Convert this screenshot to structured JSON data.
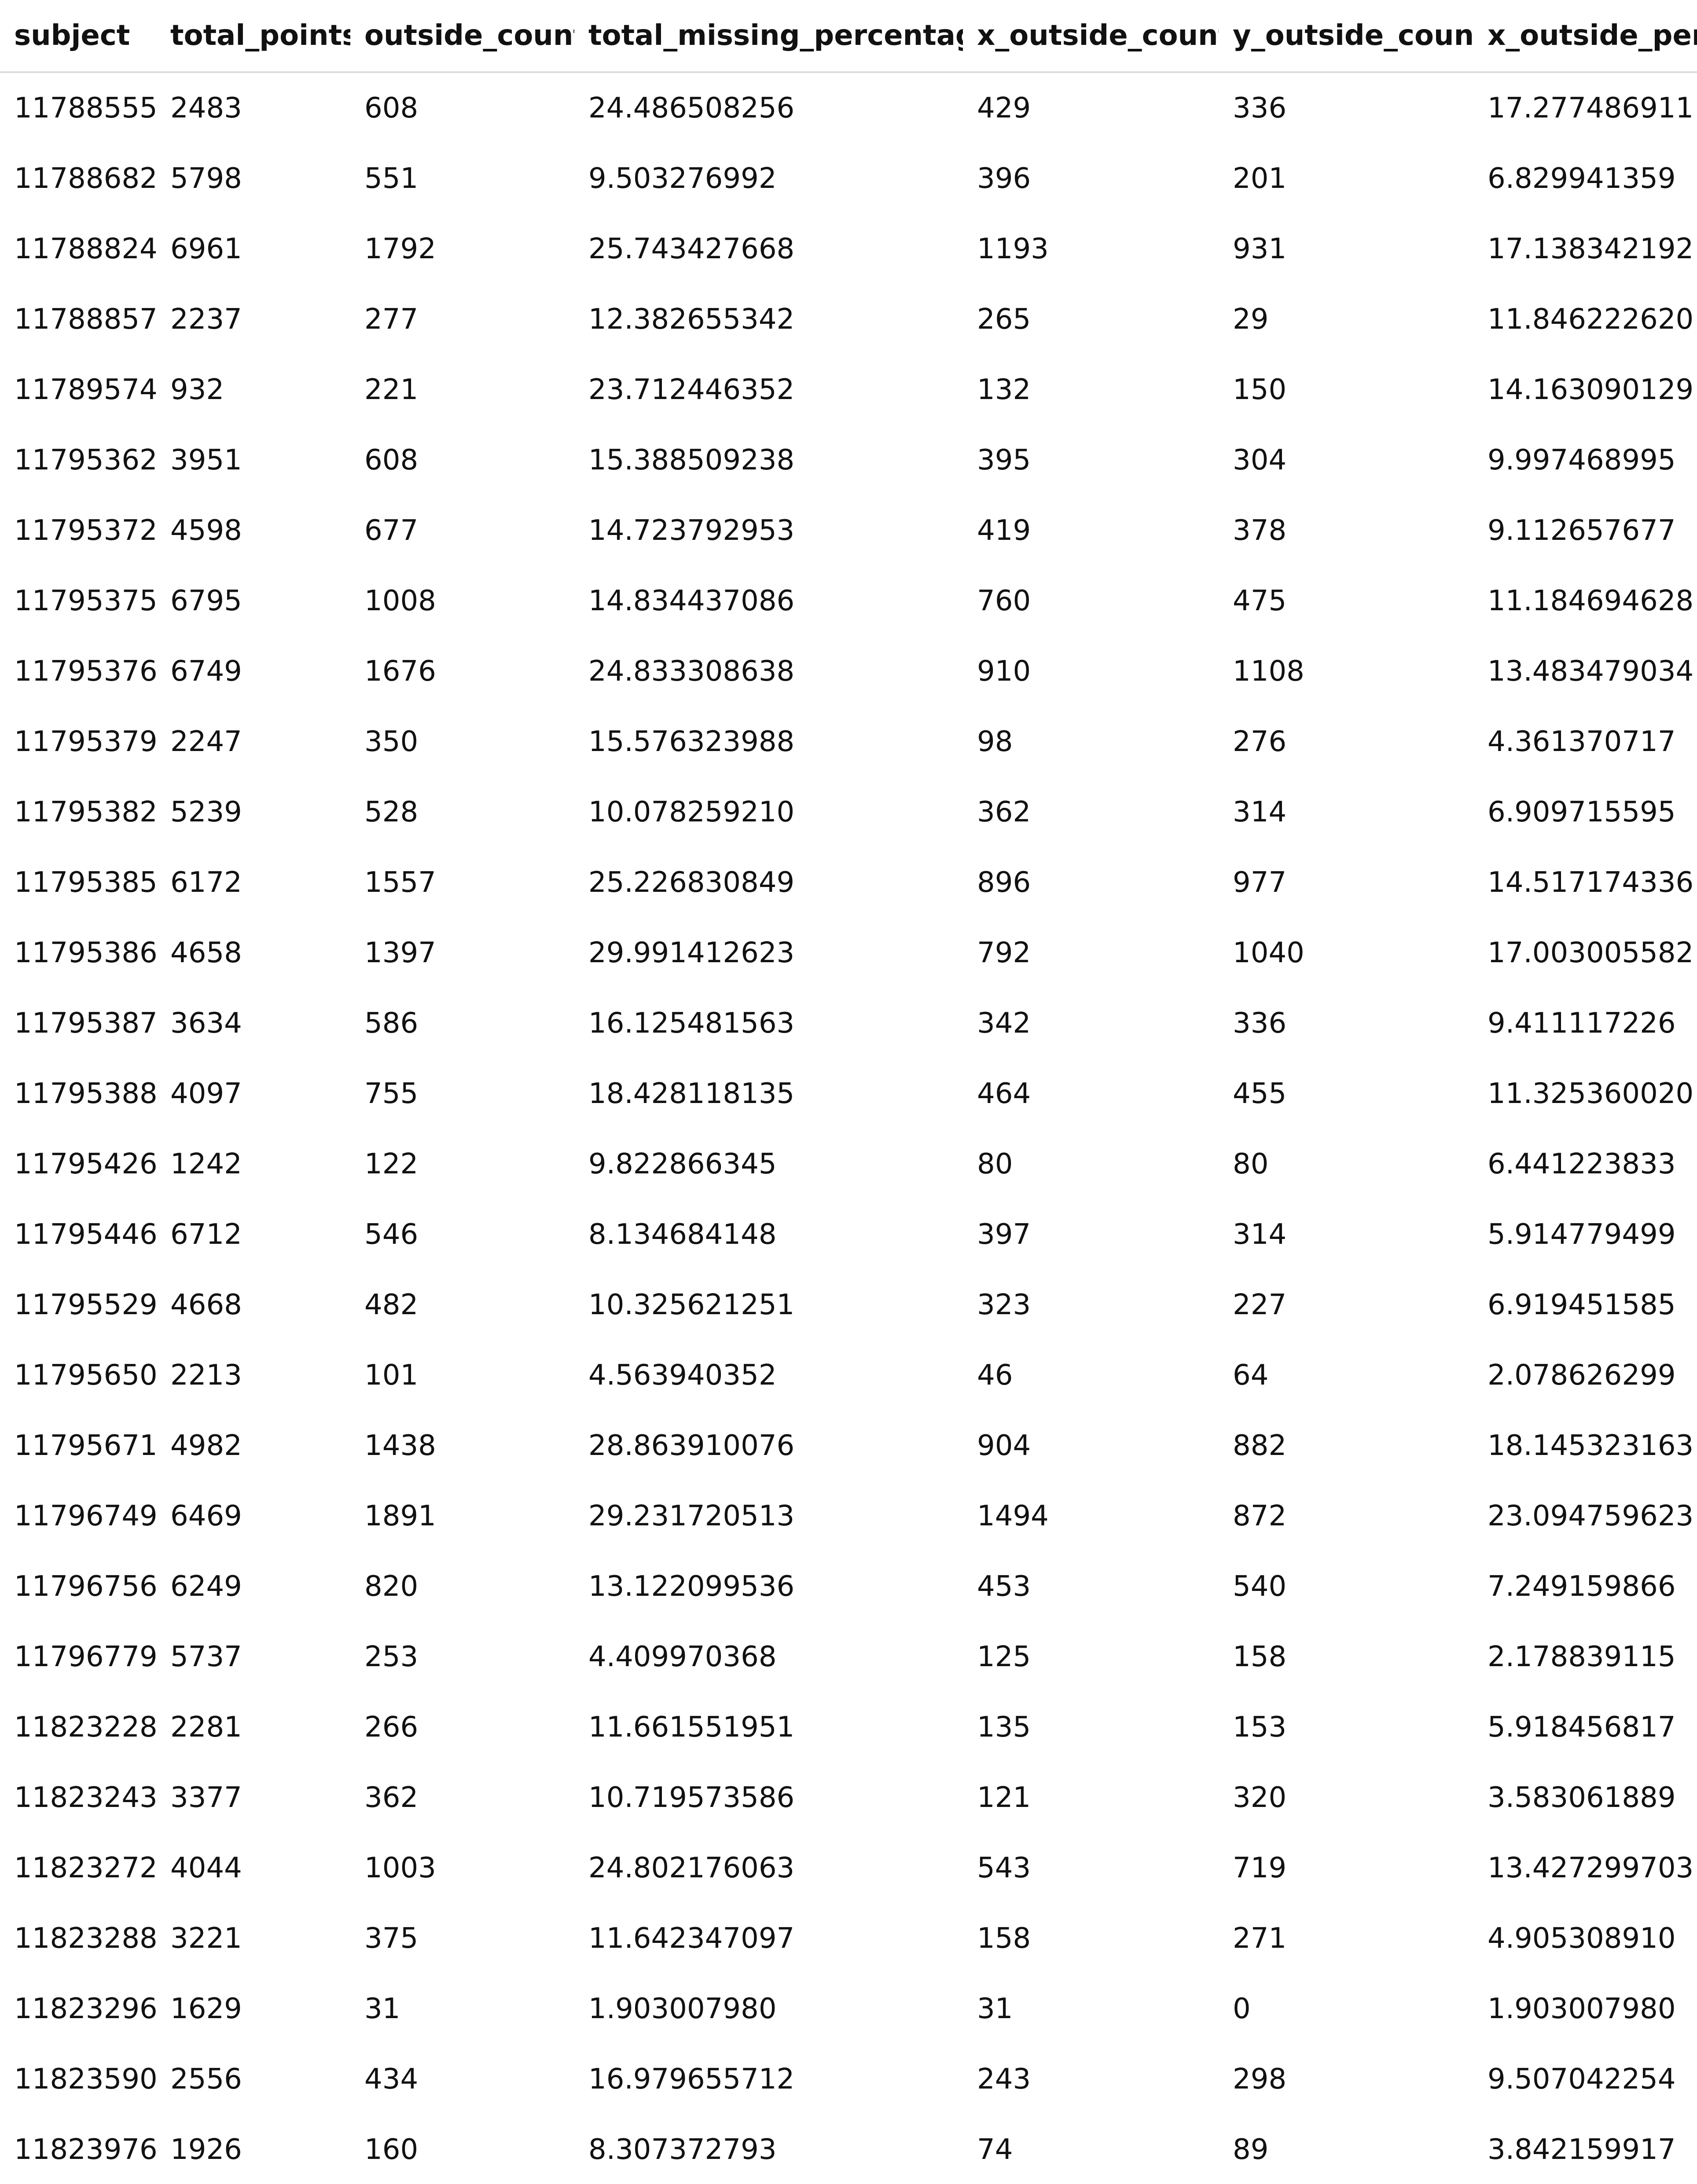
{
  "table": {
    "columns": [
      "subject",
      "total_points",
      "outside_count",
      "total_missing_percentage",
      "x_outside_count",
      "y_outside_count",
      "x_outside_perc"
    ],
    "rows": [
      [
        "11788555",
        "2483",
        "608",
        "24.486508256",
        "429",
        "336",
        "17.277486911"
      ],
      [
        "11788682",
        "5798",
        "551",
        "9.503276992",
        "396",
        "201",
        "6.829941359"
      ],
      [
        "11788824",
        "6961",
        "1792",
        "25.743427668",
        "1193",
        "931",
        "17.138342192"
      ],
      [
        "11788857",
        "2237",
        "277",
        "12.382655342",
        "265",
        "29",
        "11.846222620"
      ],
      [
        "11789574",
        "932",
        "221",
        "23.712446352",
        "132",
        "150",
        "14.163090129"
      ],
      [
        "11795362",
        "3951",
        "608",
        "15.388509238",
        "395",
        "304",
        "9.997468995"
      ],
      [
        "11795372",
        "4598",
        "677",
        "14.723792953",
        "419",
        "378",
        "9.112657677"
      ],
      [
        "11795375",
        "6795",
        "1008",
        "14.834437086",
        "760",
        "475",
        "11.184694628"
      ],
      [
        "11795376",
        "6749",
        "1676",
        "24.833308638",
        "910",
        "1108",
        "13.483479034"
      ],
      [
        "11795379",
        "2247",
        "350",
        "15.576323988",
        "98",
        "276",
        "4.361370717"
      ],
      [
        "11795382",
        "5239",
        "528",
        "10.078259210",
        "362",
        "314",
        "6.909715595"
      ],
      [
        "11795385",
        "6172",
        "1557",
        "25.226830849",
        "896",
        "977",
        "14.517174336"
      ],
      [
        "11795386",
        "4658",
        "1397",
        "29.991412623",
        "792",
        "1040",
        "17.003005582"
      ],
      [
        "11795387",
        "3634",
        "586",
        "16.125481563",
        "342",
        "336",
        "9.411117226"
      ],
      [
        "11795388",
        "4097",
        "755",
        "18.428118135",
        "464",
        "455",
        "11.325360020"
      ],
      [
        "11795426",
        "1242",
        "122",
        "9.822866345",
        "80",
        "80",
        "6.441223833"
      ],
      [
        "11795446",
        "6712",
        "546",
        "8.134684148",
        "397",
        "314",
        "5.914779499"
      ],
      [
        "11795529",
        "4668",
        "482",
        "10.325621251",
        "323",
        "227",
        "6.919451585"
      ],
      [
        "11795650",
        "2213",
        "101",
        "4.563940352",
        "46",
        "64",
        "2.078626299"
      ],
      [
        "11795671",
        "4982",
        "1438",
        "28.863910076",
        "904",
        "882",
        "18.145323163"
      ],
      [
        "11796749",
        "6469",
        "1891",
        "29.231720513",
        "1494",
        "872",
        "23.094759623"
      ],
      [
        "11796756",
        "6249",
        "820",
        "13.122099536",
        "453",
        "540",
        "7.249159866"
      ],
      [
        "11796779",
        "5737",
        "253",
        "4.409970368",
        "125",
        "158",
        "2.178839115"
      ],
      [
        "11823228",
        "2281",
        "266",
        "11.661551951",
        "135",
        "153",
        "5.918456817"
      ],
      [
        "11823243",
        "3377",
        "362",
        "10.719573586",
        "121",
        "320",
        "3.583061889"
      ],
      [
        "11823272",
        "4044",
        "1003",
        "24.802176063",
        "543",
        "719",
        "13.427299703"
      ],
      [
        "11823288",
        "3221",
        "375",
        "11.642347097",
        "158",
        "271",
        "4.905308910"
      ],
      [
        "11823296",
        "1629",
        "31",
        "1.903007980",
        "31",
        "0",
        "1.903007980"
      ],
      [
        "11823590",
        "2556",
        "434",
        "16.979655712",
        "243",
        "298",
        "9.507042254"
      ],
      [
        "11823976",
        "1926",
        "160",
        "8.307372793",
        "74",
        "89",
        "3.842159917"
      ]
    ]
  }
}
